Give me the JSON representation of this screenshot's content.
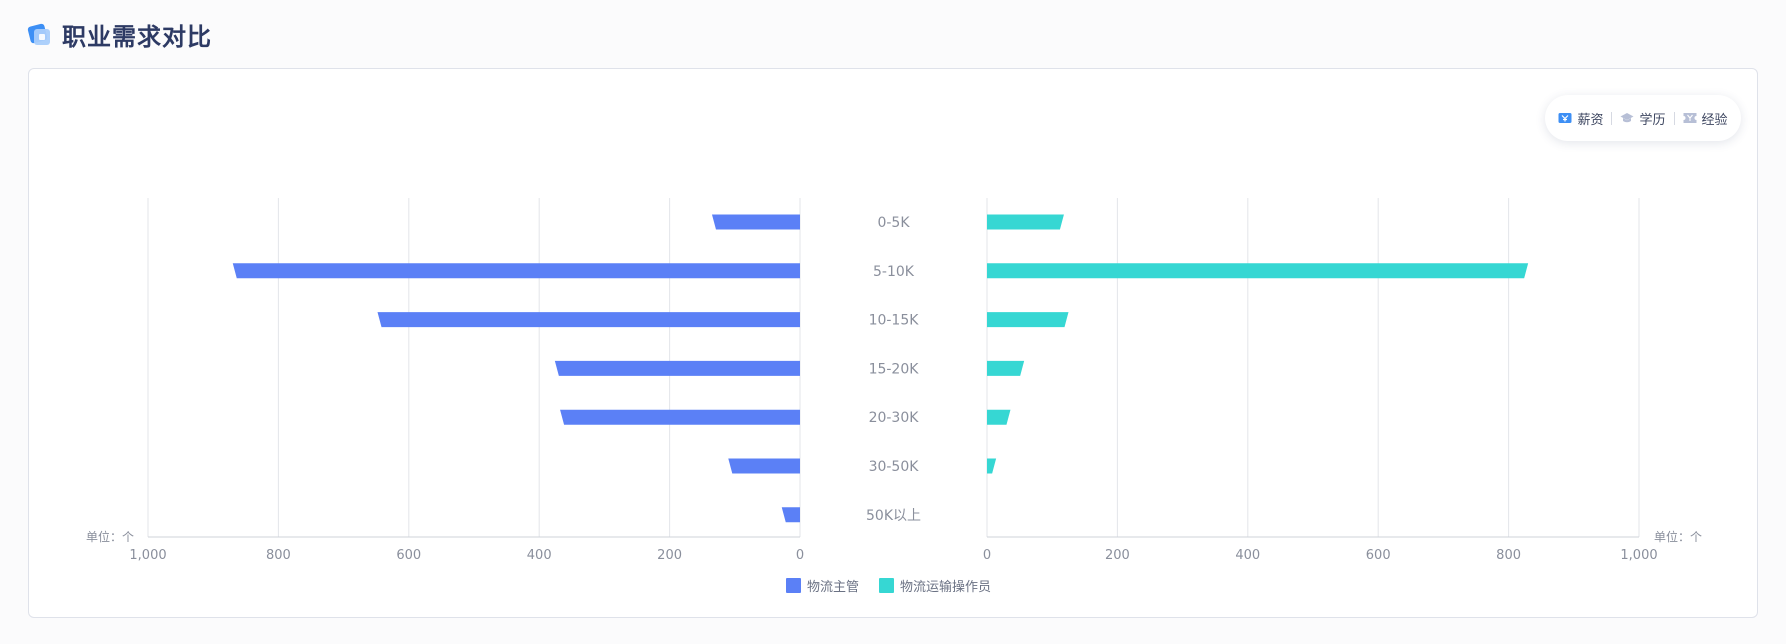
{
  "header": {
    "title": "职业需求对比"
  },
  "tabs": [
    {
      "label": "薪资",
      "icon": "money-icon",
      "active": true
    },
    {
      "label": "学历",
      "icon": "graduation-cap-icon",
      "active": false
    },
    {
      "label": "经验",
      "icon": "ticket-icon",
      "active": false
    }
  ],
  "colors": {
    "left": "#5b80f6",
    "right": "#36d7d3",
    "tab_active_icon": "#3d8ff5",
    "tab_inactive_icon": "#b7bfd6"
  },
  "chart_data": {
    "type": "bar",
    "orientation": "horizontal-butterfly",
    "categories": [
      "0-5K",
      "5-10K",
      "10-15K",
      "15-20K",
      "20-30K",
      "30-50K",
      "50K以上"
    ],
    "series": [
      {
        "name": "物流主管",
        "side": "left",
        "values": [
          135,
          870,
          648,
          376,
          368,
          110,
          28
        ]
      },
      {
        "name": "物流运输操作员",
        "side": "right",
        "values": [
          118,
          830,
          125,
          57,
          36,
          14,
          0
        ]
      }
    ],
    "xlim": [
      0,
      1000
    ],
    "ticks_left": [
      "1,000",
      "800",
      "600",
      "400",
      "200",
      "0"
    ],
    "ticks_right": [
      "0",
      "200",
      "400",
      "600",
      "800",
      "1,000"
    ],
    "unit_left": "单位：个",
    "unit_right": "单位：个",
    "grid": true,
    "legend_position": "bottom-center"
  }
}
